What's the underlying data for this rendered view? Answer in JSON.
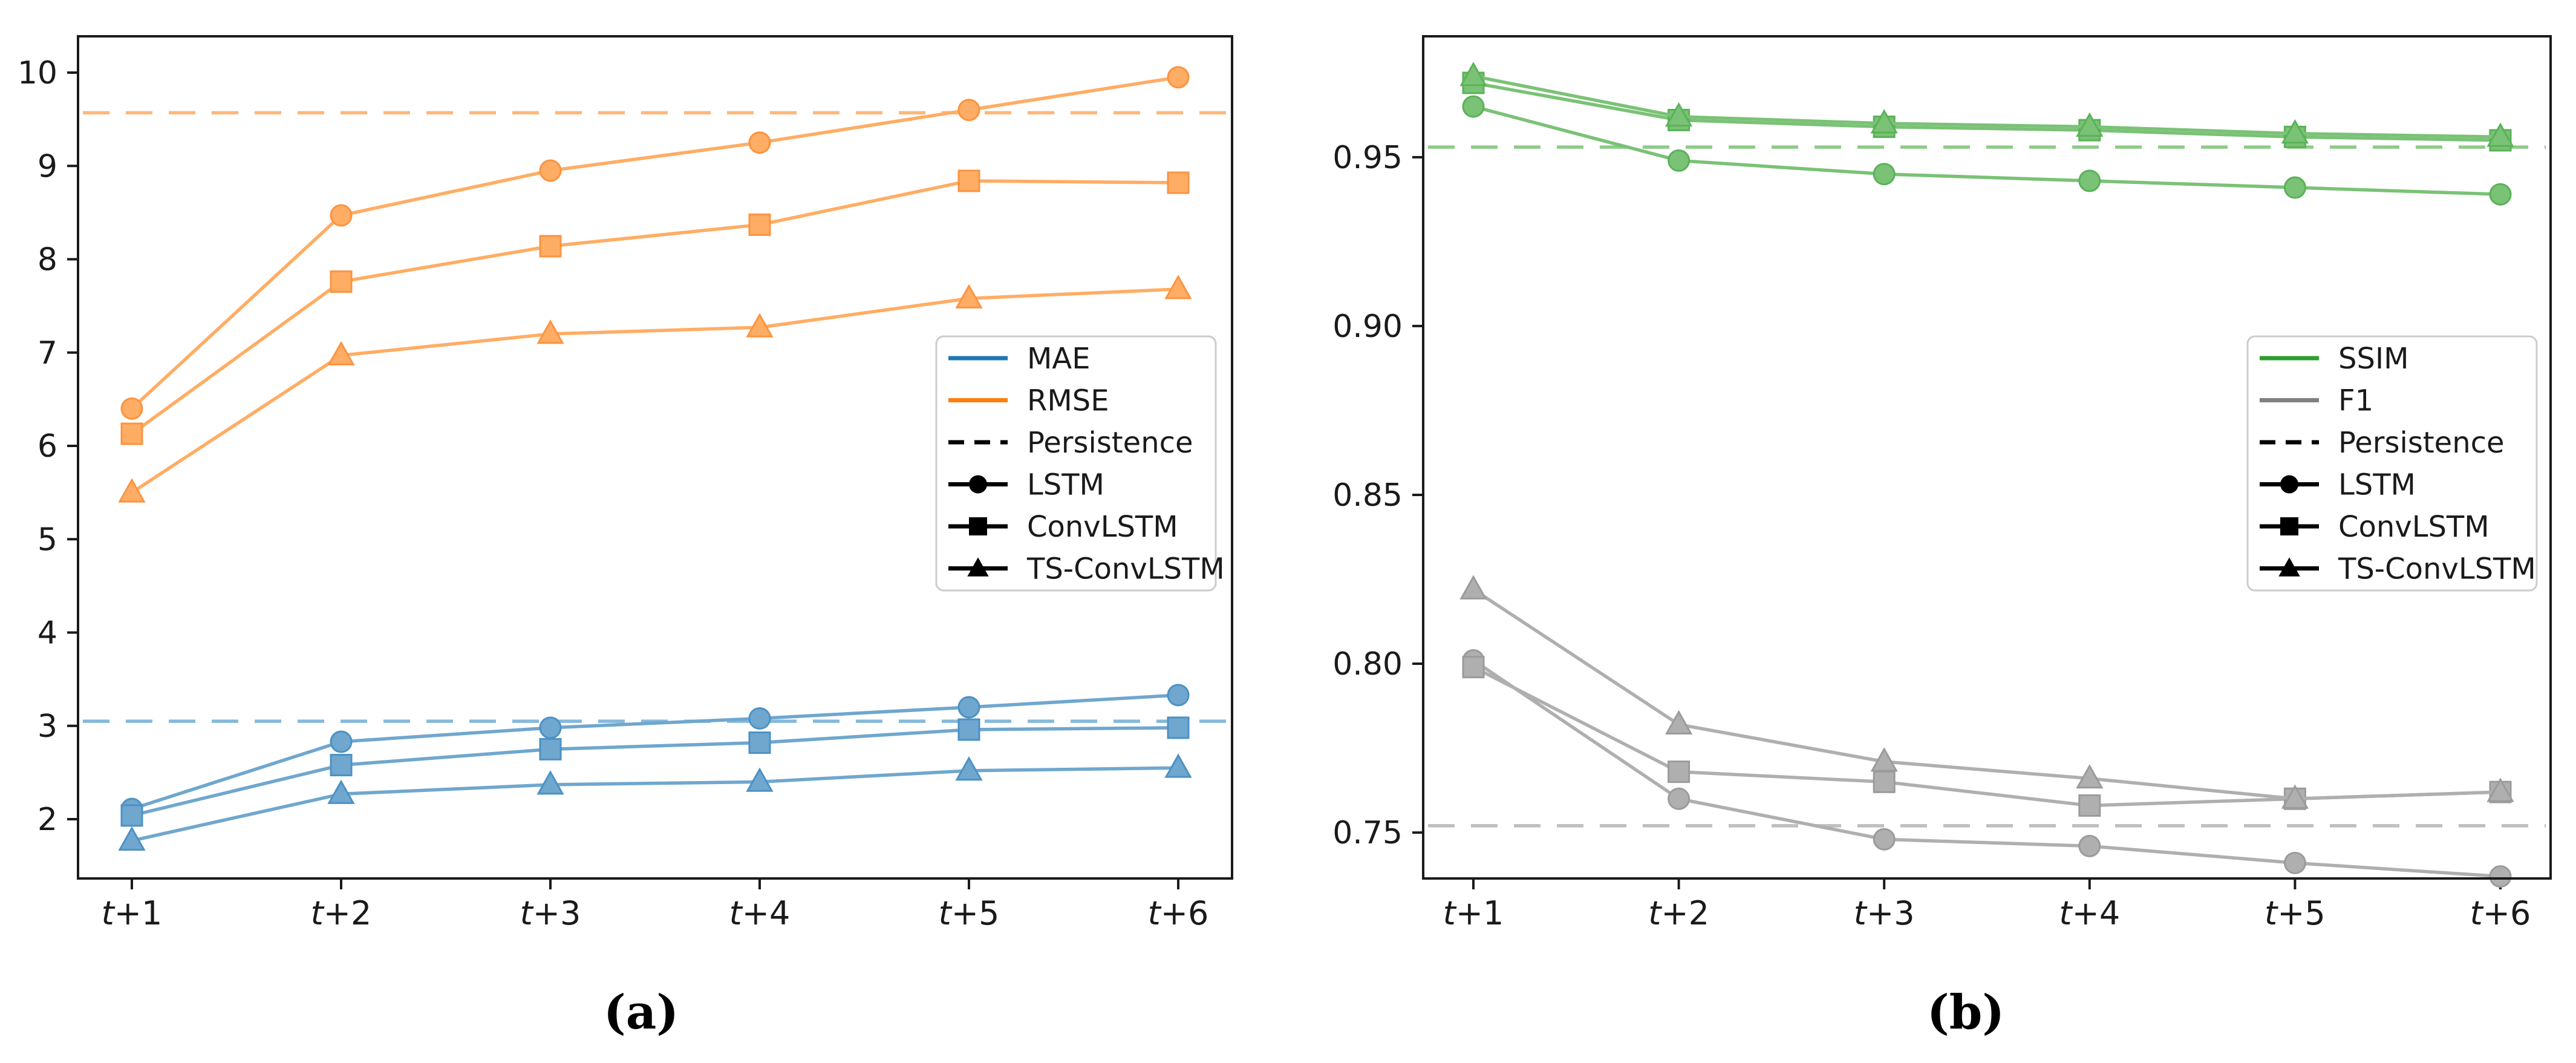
{
  "figure": {
    "background": "#ffffff",
    "description": "Two-panel matplotlib-style line figure comparing forecasting models over horizons t+1 to t+6"
  },
  "chart_data": [
    {
      "id": "a",
      "type": "line",
      "caption": "(a)",
      "title": "",
      "xlabel": "",
      "ylabel": "",
      "categories": [
        "t+1",
        "t+2",
        "t+3",
        "t+4",
        "t+5",
        "t+6"
      ],
      "ylim": [
        1.365,
        10.389
      ],
      "yticks": [
        2,
        3,
        4,
        5,
        6,
        7,
        8,
        9,
        10
      ],
      "ytick_labels": [
        "2",
        "3",
        "4",
        "5",
        "6",
        "7",
        "8",
        "9",
        "10"
      ],
      "grid": false,
      "legend_position": "center right",
      "metrics": [
        {
          "name": "MAE",
          "legend_color": "#1f77b4",
          "line_color": "#6fa7ce",
          "marker_edge_color": "#4c91c4",
          "persistence_value": 3.05,
          "persistence_color": "#86b9db"
        },
        {
          "name": "RMSE",
          "legend_color": "#ff7f0e",
          "line_color": "#ffad64",
          "marker_edge_color": "#fc9340",
          "persistence_value": 9.57,
          "persistence_color": "#ffb778"
        }
      ],
      "series": [
        {
          "metric": "MAE",
          "model": "LSTM",
          "marker": "circle",
          "values": [
            2.11,
            2.83,
            2.98,
            3.08,
            3.2,
            3.33
          ]
        },
        {
          "metric": "MAE",
          "model": "ConvLSTM",
          "marker": "square",
          "values": [
            2.04,
            2.58,
            2.75,
            2.82,
            2.96,
            2.98
          ]
        },
        {
          "metric": "MAE",
          "model": "TS-ConvLSTM",
          "marker": "triangle",
          "values": [
            1.77,
            2.27,
            2.37,
            2.4,
            2.52,
            2.55
          ]
        },
        {
          "metric": "RMSE",
          "model": "LSTM",
          "marker": "circle",
          "values": [
            6.4,
            8.47,
            8.95,
            9.25,
            9.6,
            9.95
          ]
        },
        {
          "metric": "RMSE",
          "model": "ConvLSTM",
          "marker": "square",
          "values": [
            6.13,
            7.76,
            8.14,
            8.37,
            8.84,
            8.82
          ]
        },
        {
          "metric": "RMSE",
          "model": "TS-ConvLSTM",
          "marker": "triangle",
          "values": [
            5.5,
            6.97,
            7.2,
            7.27,
            7.58,
            7.68
          ]
        }
      ],
      "legend": [
        {
          "label": "MAE",
          "swatch": "line",
          "color": "#1f77b4"
        },
        {
          "label": "RMSE",
          "swatch": "line",
          "color": "#ff7f0e"
        },
        {
          "label": "Persistence",
          "swatch": "dashed",
          "color": "#000000"
        },
        {
          "label": "LSTM",
          "swatch": "marker",
          "marker": "circle",
          "color": "#000000"
        },
        {
          "label": "ConvLSTM",
          "swatch": "marker",
          "marker": "square",
          "color": "#000000"
        },
        {
          "label": "TS-ConvLSTM",
          "swatch": "marker",
          "marker": "triangle",
          "color": "#000000"
        }
      ]
    },
    {
      "id": "b",
      "type": "line",
      "caption": "(b)",
      "title": "",
      "xlabel": "",
      "ylabel": "",
      "categories": [
        "t+1",
        "t+2",
        "t+3",
        "t+4",
        "t+5",
        "t+6"
      ],
      "ylim": [
        0.7364,
        0.9858
      ],
      "yticks": [
        0.75,
        0.8,
        0.85,
        0.9,
        0.95
      ],
      "ytick_labels": [
        "0.75",
        "0.80",
        "0.85",
        "0.90",
        "0.95"
      ],
      "grid": false,
      "legend_position": "center right",
      "metrics": [
        {
          "name": "SSIM",
          "legend_color": "#2ca02c",
          "line_color": "#7ac276",
          "marker_edge_color": "#5ab258",
          "persistence_value": 0.953,
          "persistence_color": "#8dcb88"
        },
        {
          "name": "F1",
          "legend_color": "#808080",
          "line_color": "#afafaf",
          "marker_edge_color": "#9b9b9b",
          "persistence_value": 0.752,
          "persistence_color": "#bfbfbf"
        }
      ],
      "series": [
        {
          "metric": "SSIM",
          "model": "LSTM",
          "marker": "circle",
          "values": [
            0.965,
            0.949,
            0.945,
            0.943,
            0.941,
            0.939
          ]
        },
        {
          "metric": "SSIM",
          "model": "ConvLSTM",
          "marker": "square",
          "values": [
            0.972,
            0.961,
            0.959,
            0.958,
            0.956,
            0.955
          ]
        },
        {
          "metric": "SSIM",
          "model": "TS-ConvLSTM",
          "marker": "triangle",
          "values": [
            0.974,
            0.962,
            0.96,
            0.959,
            0.957,
            0.956
          ]
        },
        {
          "metric": "F1",
          "model": "LSTM",
          "marker": "circle",
          "values": [
            0.801,
            0.76,
            0.748,
            0.746,
            0.741,
            0.737
          ]
        },
        {
          "metric": "F1",
          "model": "ConvLSTM",
          "marker": "square",
          "values": [
            0.799,
            0.768,
            0.765,
            0.758,
            0.76,
            0.762
          ]
        },
        {
          "metric": "F1",
          "model": "TS-ConvLSTM",
          "marker": "triangle",
          "values": [
            0.822,
            0.782,
            0.771,
            0.766,
            0.76,
            0.762
          ]
        }
      ],
      "legend": [
        {
          "label": "SSIM",
          "swatch": "line",
          "color": "#2ca02c"
        },
        {
          "label": "F1",
          "swatch": "line",
          "color": "#808080"
        },
        {
          "label": "Persistence",
          "swatch": "dashed",
          "color": "#000000"
        },
        {
          "label": "LSTM",
          "swatch": "marker",
          "marker": "circle",
          "color": "#000000"
        },
        {
          "label": "ConvLSTM",
          "swatch": "marker",
          "marker": "square",
          "color": "#000000"
        },
        {
          "label": "TS-ConvLSTM",
          "swatch": "marker",
          "marker": "triangle",
          "color": "#000000"
        }
      ]
    }
  ]
}
